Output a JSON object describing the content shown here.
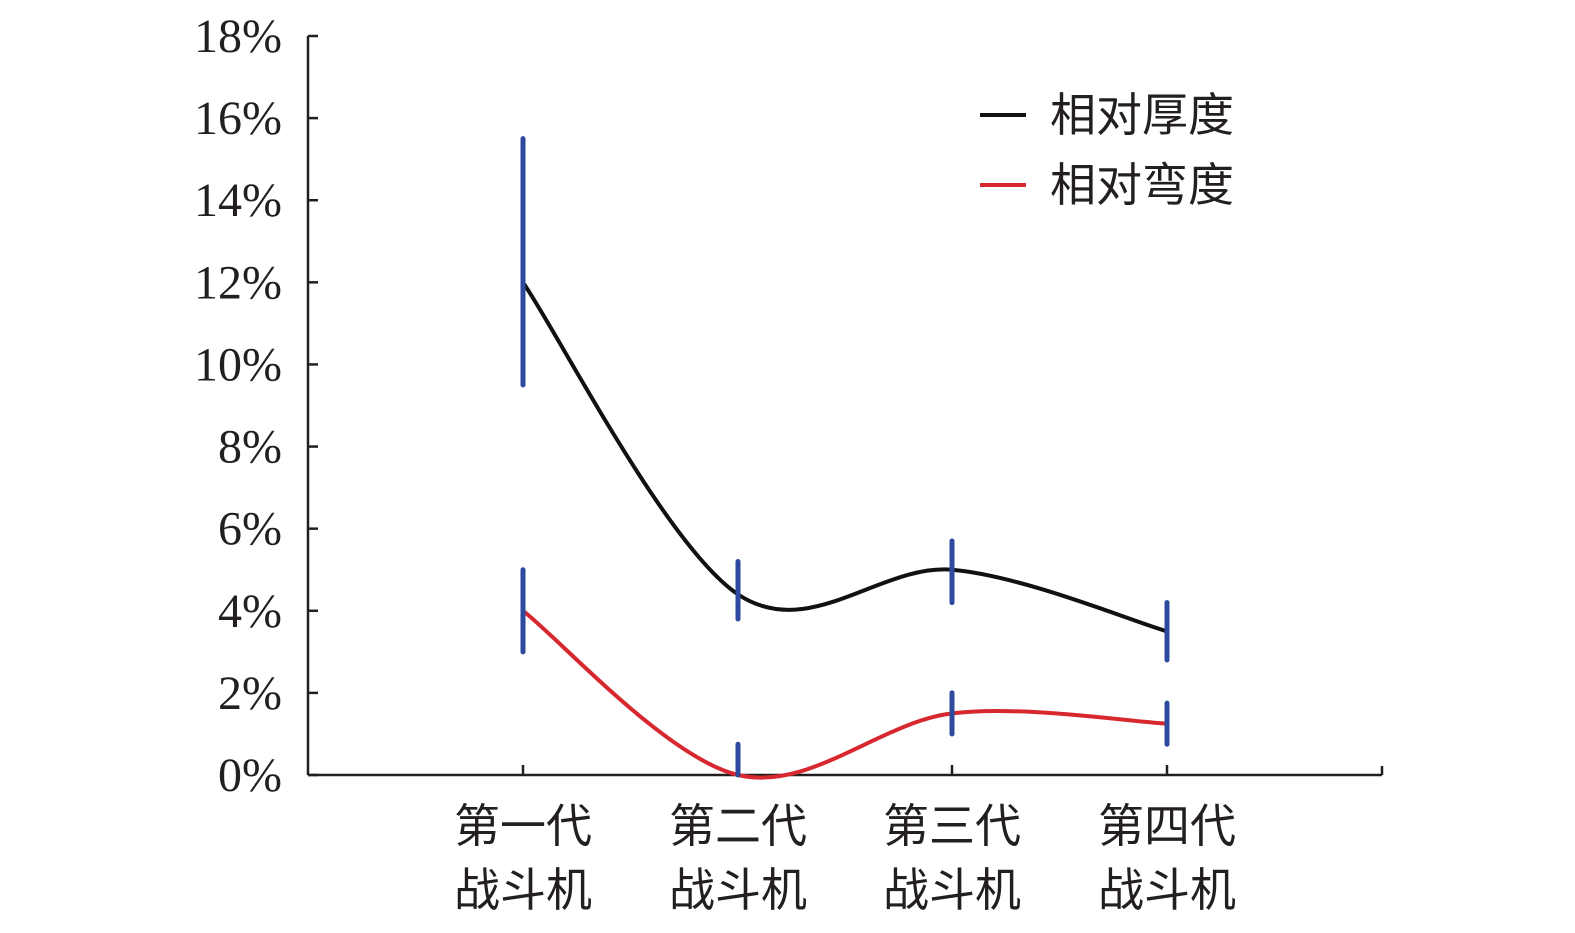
{
  "chart_data": {
    "type": "line",
    "categories": [
      [
        "第一代",
        "战斗机"
      ],
      [
        "第二代",
        "战斗机"
      ],
      [
        "第三代",
        "战斗机"
      ],
      [
        "第四代",
        "战斗机"
      ]
    ],
    "ylim": [
      0,
      18
    ],
    "yticks": [
      0,
      2,
      4,
      6,
      8,
      10,
      12,
      14,
      16,
      18
    ],
    "ytick_labels": [
      "0%",
      "2%",
      "4%",
      "6%",
      "8%",
      "10%",
      "12%",
      "14%",
      "16%",
      "18%"
    ],
    "grid": false,
    "legend_position": "top-right",
    "error_bar_color": "#2e4a9e",
    "series": [
      {
        "name": "相对厚度",
        "color": "#111111",
        "values": [
          12,
          4.4,
          5.0,
          3.5
        ],
        "error_low": [
          9.5,
          3.8,
          4.2,
          2.8
        ],
        "error_high": [
          15.5,
          5.2,
          5.7,
          4.2
        ]
      },
      {
        "name": "相对弯度",
        "color": "#d7282f",
        "values": [
          4.0,
          0.0,
          1.5,
          1.25
        ],
        "error_low": [
          3.0,
          0.0,
          1.0,
          0.75
        ],
        "error_high": [
          5.0,
          0.75,
          2.0,
          1.75
        ]
      }
    ]
  }
}
